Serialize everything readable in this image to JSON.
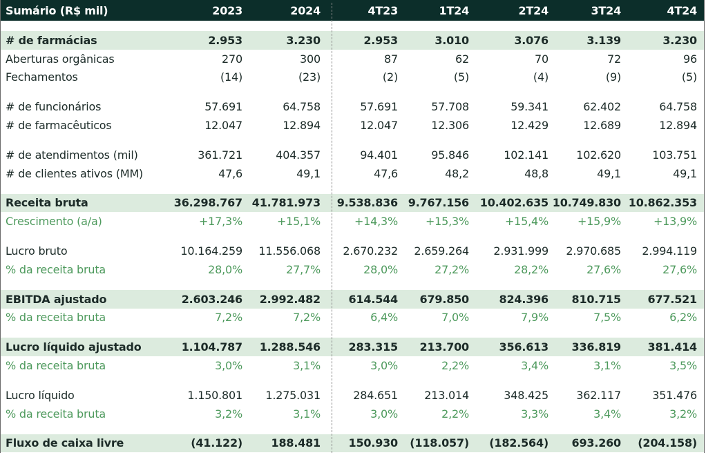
{
  "header": {
    "title": "Sumário (R$ mil)",
    "columns": [
      "2023",
      "2024",
      "4T23",
      "1T24",
      "2T24",
      "3T24",
      "4T24"
    ]
  },
  "colors": {
    "header_bg": "#0c2e2a",
    "highlight_bg": "#dcebde",
    "green_text": "#4e9a5d",
    "text": "#1c2b28"
  },
  "rows": [
    {
      "label": "# de farmácias",
      "style": "highlight",
      "values": [
        "2.953",
        "3.230",
        "2.953",
        "3.010",
        "3.076",
        "3.139",
        "3.230"
      ]
    },
    {
      "label": "Aberturas orgânicas",
      "style": "normal",
      "values": [
        "270",
        "300",
        "87",
        "62",
        "70",
        "72",
        "96"
      ]
    },
    {
      "label": "Fechamentos",
      "style": "normal",
      "values": [
        "(14)",
        "(23)",
        "(2)",
        "(5)",
        "(4)",
        "(9)",
        "(5)"
      ],
      "gap_after": true
    },
    {
      "label": "# de funcionários",
      "style": "normal",
      "values": [
        "57.691",
        "64.758",
        "57.691",
        "57.708",
        "59.341",
        "62.402",
        "64.758"
      ]
    },
    {
      "label": "# de farmacêuticos",
      "style": "normal",
      "values": [
        "12.047",
        "12.894",
        "12.047",
        "12.306",
        "12.429",
        "12.689",
        "12.894"
      ],
      "gap_after": true
    },
    {
      "label": "# de atendimentos (mil)",
      "style": "normal",
      "values": [
        "361.721",
        "404.357",
        "94.401",
        "95.846",
        "102.141",
        "102.620",
        "103.751"
      ]
    },
    {
      "label": "# de clientes ativos (MM)",
      "style": "normal",
      "values": [
        "47,6",
        "49,1",
        "47,6",
        "48,2",
        "48,8",
        "49,1",
        "49,1"
      ],
      "gap_after": true
    },
    {
      "label": "Receita bruta",
      "style": "highlight",
      "values": [
        "36.298.767",
        "41.781.973",
        "9.538.836",
        "9.767.156",
        "10.402.635",
        "10.749.830",
        "10.862.353"
      ]
    },
    {
      "label": "Crescimento (a/a)",
      "style": "green",
      "values": [
        "+17,3%",
        "+15,1%",
        "+14,3%",
        "+15,3%",
        "+15,4%",
        "+15,9%",
        "+13,9%"
      ],
      "gap_after": true
    },
    {
      "label": "Lucro bruto",
      "style": "normal",
      "values": [
        "10.164.259",
        "11.556.068",
        "2.670.232",
        "2.659.264",
        "2.931.999",
        "2.970.685",
        "2.994.119"
      ]
    },
    {
      "label": "% da receita bruta",
      "style": "green",
      "values": [
        "28,0%",
        "27,7%",
        "28,0%",
        "27,2%",
        "28,2%",
        "27,6%",
        "27,6%"
      ],
      "gap_after": true
    },
    {
      "label": "EBITDA ajustado",
      "style": "highlight",
      "values": [
        "2.603.246",
        "2.992.482",
        "614.544",
        "679.850",
        "824.396",
        "810.715",
        "677.521"
      ]
    },
    {
      "label": "% da receita bruta",
      "style": "green",
      "values": [
        "7,2%",
        "7,2%",
        "6,4%",
        "7,0%",
        "7,9%",
        "7,5%",
        "6,2%"
      ],
      "gap_after": true
    },
    {
      "label": "Lucro líquido ajustado",
      "style": "highlight",
      "values": [
        "1.104.787",
        "1.288.546",
        "283.315",
        "213.700",
        "356.613",
        "336.819",
        "381.414"
      ]
    },
    {
      "label": "% da receita bruta",
      "style": "green",
      "values": [
        "3,0%",
        "3,1%",
        "3,0%",
        "2,2%",
        "3,4%",
        "3,1%",
        "3,5%"
      ],
      "gap_after": true
    },
    {
      "label": "Lucro líquido",
      "style": "normal",
      "values": [
        "1.150.801",
        "1.275.031",
        "284.651",
        "213.014",
        "348.425",
        "362.117",
        "351.476"
      ]
    },
    {
      "label": "% da receita bruta",
      "style": "green",
      "values": [
        "3,2%",
        "3,1%",
        "3,0%",
        "2,2%",
        "3,3%",
        "3,4%",
        "3,2%"
      ],
      "gap_after": true
    },
    {
      "label": "Fluxo de caixa livre",
      "style": "highlight",
      "values": [
        "(41.122)",
        "188.481",
        "150.930",
        "(118.057)",
        "(182.564)",
        "693.260",
        "(204.158)"
      ]
    }
  ]
}
